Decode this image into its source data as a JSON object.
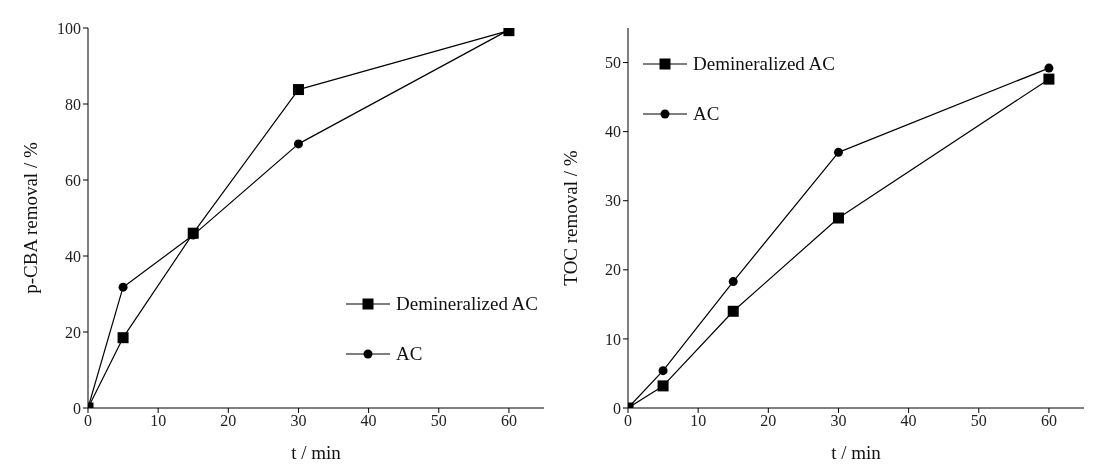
{
  "chart_data": [
    {
      "type": "line",
      "xlabel": "t / min",
      "ylabel": "p-CBA removal / %",
      "x": [
        0,
        5,
        15,
        30,
        60
      ],
      "xlim": [
        0,
        65
      ],
      "xticks": [
        0,
        10,
        20,
        30,
        40,
        50,
        60
      ],
      "ylim": [
        0,
        100
      ],
      "yticks": [
        0,
        20,
        40,
        60,
        80,
        100
      ],
      "grid": false,
      "legend": "right",
      "line_style": "solid",
      "series": [
        {
          "name": "Demineralized AC",
          "color": "#000000",
          "marker": "square",
          "values": [
            0,
            18.5,
            46,
            83.8,
            99.3
          ]
        },
        {
          "name": "AC",
          "color": "#000000",
          "marker": "circle",
          "values": [
            0,
            31.8,
            45.5,
            69.5,
            99.5
          ]
        }
      ]
    },
    {
      "type": "line",
      "xlabel": "t / min",
      "ylabel": "TOC removal / %",
      "x": [
        0,
        5,
        15,
        30,
        60
      ],
      "xlim": [
        0,
        65
      ],
      "xticks": [
        0,
        10,
        20,
        30,
        40,
        50,
        60
      ],
      "ylim": [
        0,
        55
      ],
      "yticks": [
        0,
        10,
        20,
        30,
        40,
        50
      ],
      "grid": false,
      "legend": "top left",
      "line_style": "solid",
      "series": [
        {
          "name": "Demineralized AC",
          "color": "#000000",
          "marker": "square",
          "values": [
            0,
            3.2,
            14,
            27.5,
            47.6
          ]
        },
        {
          "name": "AC",
          "color": "#000000",
          "marker": "circle",
          "values": [
            0,
            5.4,
            18.3,
            37,
            49.2
          ]
        }
      ]
    }
  ]
}
